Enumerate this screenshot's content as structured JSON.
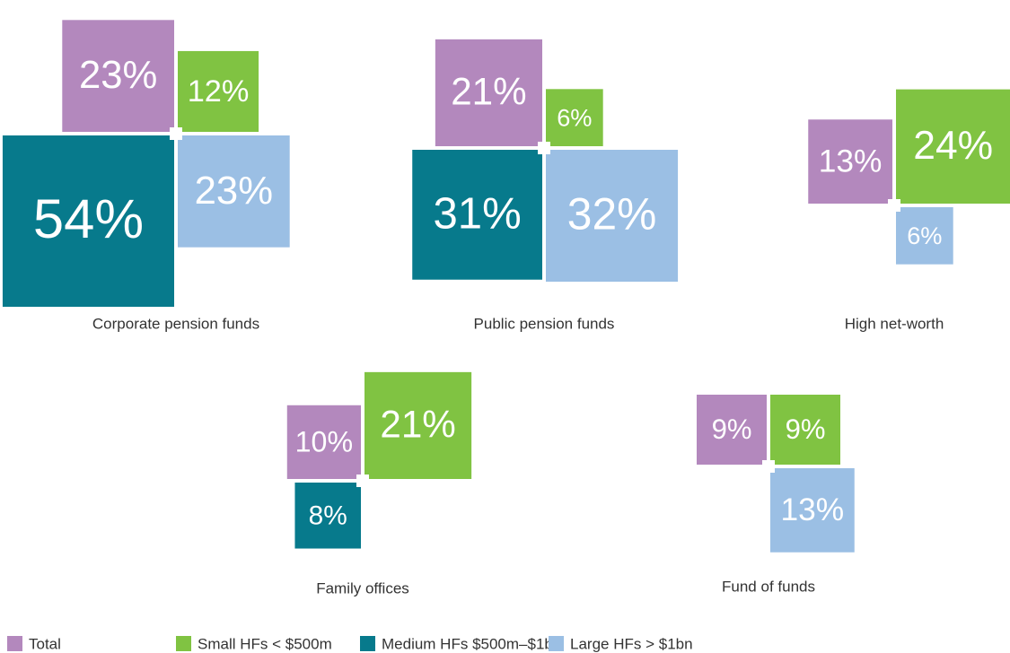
{
  "chart_data": {
    "type": "proportional-square",
    "categories": [
      "Corporate pension funds",
      "Public pension funds",
      "High net-worth",
      "Family offices",
      "Fund of funds"
    ],
    "series": [
      {
        "name": "Total",
        "color": "#b388bd",
        "values": [
          23,
          21,
          13,
          10,
          9
        ],
        "value_labels": [
          "23%",
          "21%",
          "13%",
          "10%",
          "9%"
        ]
      },
      {
        "name": "Small HFs < $500m",
        "color": "#80c342",
        "values": [
          12,
          6,
          24,
          21,
          9
        ],
        "value_labels": [
          "12%",
          "6%",
          "24%",
          "21%",
          "9%"
        ]
      },
      {
        "name": "Medium HFs $500m–$1bn",
        "color": "#077a8c",
        "values": [
          54,
          31,
          null,
          8,
          null
        ],
        "value_labels": [
          "54%",
          "31%",
          null,
          "8%",
          null
        ]
      },
      {
        "name": "Large HFs > $1bn",
        "color": "#9bbfe4",
        "values": [
          23,
          32,
          6,
          null,
          13
        ],
        "value_labels": [
          "23%",
          "32%",
          "6%",
          null,
          "13%"
        ]
      }
    ]
  }
}
